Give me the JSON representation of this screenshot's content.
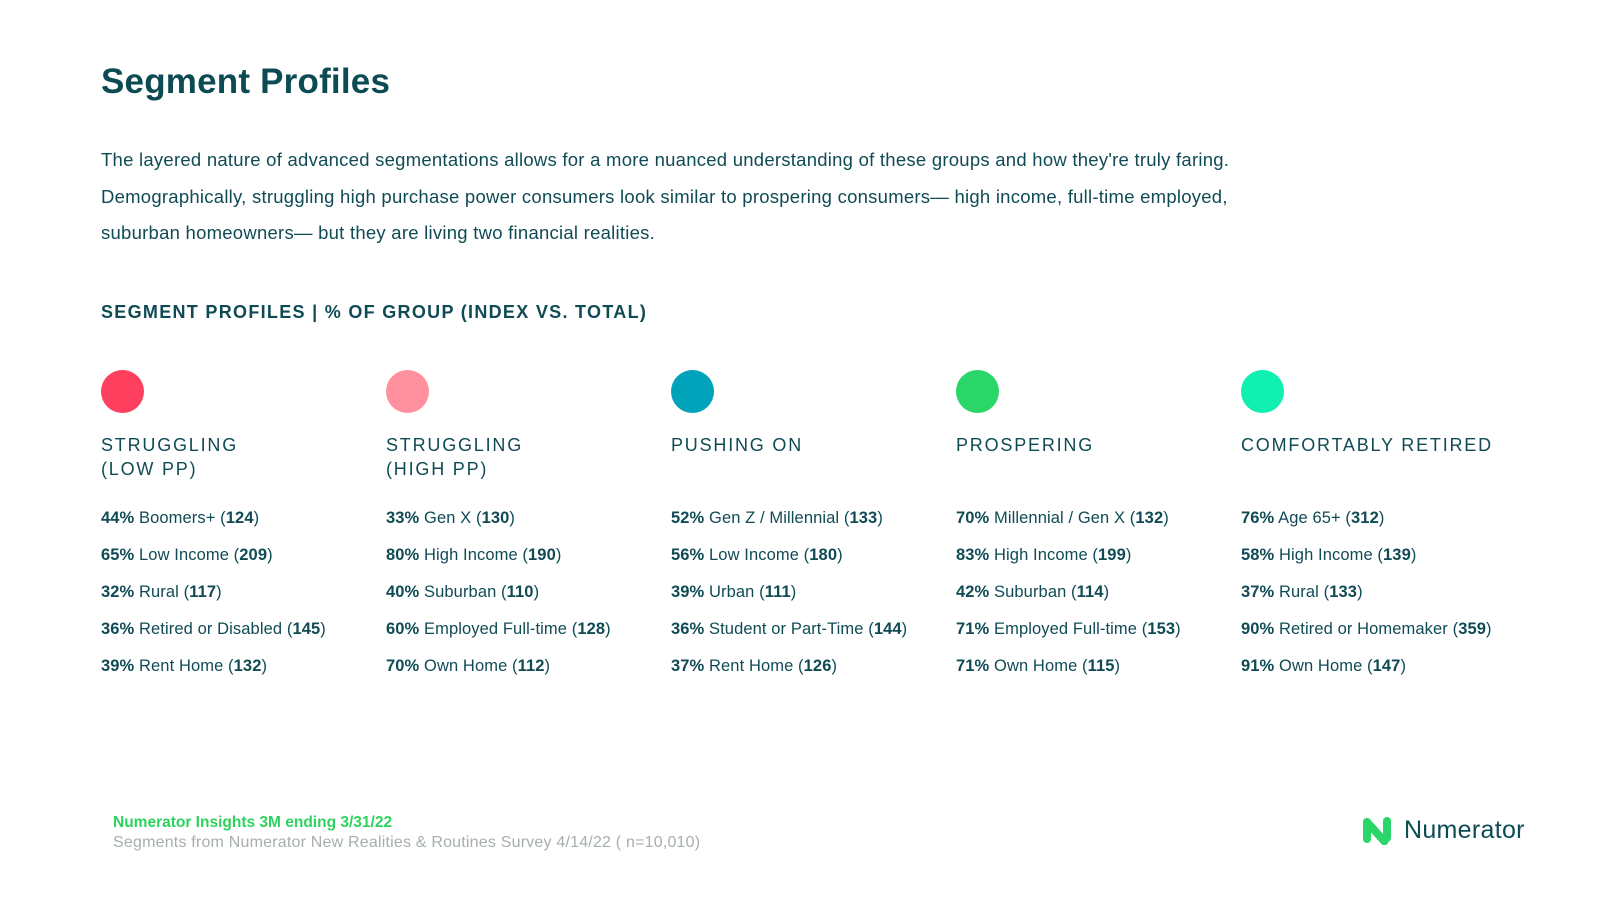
{
  "page": {
    "title": "Segment Profiles",
    "intro": [
      "The layered nature of advanced segmentations allows for a more nuanced understanding of these groups and how they're truly faring.",
      "Demographically, struggling high purchase power consumers look similar to prospering consumers— high income, full-time employed,",
      "suburban homeowners— but they are living two financial realities."
    ],
    "section_heading": "SEGMENT PROFILES | % OF GROUP (INDEX VS. TOTAL)"
  },
  "segments": [
    {
      "name": "STRUGGLING\n(LOW PP)",
      "color": "#ff3f5e",
      "stats": [
        {
          "pct": "44%",
          "label": "Boomers+",
          "index": "124"
        },
        {
          "pct": "65%",
          "label": "Low Income",
          "index": "209"
        },
        {
          "pct": "32%",
          "label": "Rural",
          "index": "117"
        },
        {
          "pct": "36%",
          "label": "Retired or Disabled",
          "index": "145"
        },
        {
          "pct": "39%",
          "label": "Rent Home",
          "index": "132"
        }
      ]
    },
    {
      "name": "STRUGGLING\n(HIGH PP)",
      "color": "#ff909e",
      "stats": [
        {
          "pct": "33%",
          "label": "Gen X",
          "index": "130"
        },
        {
          "pct": "80%",
          "label": "High Income",
          "index": "190"
        },
        {
          "pct": "40%",
          "label": "Suburban",
          "index": "110"
        },
        {
          "pct": "60%",
          "label": "Employed Full-time",
          "index": "128"
        },
        {
          "pct": "70%",
          "label": "Own Home",
          "index": "112"
        }
      ]
    },
    {
      "name": "PUSHING ON",
      "color": "#00a3ba",
      "stats": [
        {
          "pct": "52%",
          "label": "Gen Z / Millennial",
          "index": "133"
        },
        {
          "pct": "56%",
          "label": "Low Income",
          "index": "180"
        },
        {
          "pct": "39%",
          "label": "Urban",
          "index": "111"
        },
        {
          "pct": "36%",
          "label": "Student or Part-Time",
          "index": "144"
        },
        {
          "pct": "37%",
          "label": "Rent Home",
          "index": "126"
        }
      ]
    },
    {
      "name": "PROSPERING",
      "color": "#2ad668",
      "stats": [
        {
          "pct": "70%",
          "label": "Millennial / Gen X",
          "index": "132"
        },
        {
          "pct": "83%",
          "label": "High Income",
          "index": "199"
        },
        {
          "pct": "42%",
          "label": "Suburban",
          "index": "114"
        },
        {
          "pct": "71%",
          "label": "Employed Full-time",
          "index": "153"
        },
        {
          "pct": "71%",
          "label": "Own Home",
          "index": "115"
        }
      ]
    },
    {
      "name": "COMFORTABLY RETIRED",
      "color": "#0ff0b0",
      "stats": [
        {
          "pct": "76%",
          "label": "Age 65+",
          "index": "312"
        },
        {
          "pct": "58%",
          "label": "High Income",
          "index": "139"
        },
        {
          "pct": "37%",
          "label": "Rural",
          "index": "133"
        },
        {
          "pct": "90%",
          "label": "Retired or Homemaker",
          "index": "359"
        },
        {
          "pct": "91%",
          "label": "Own Home",
          "index": "147"
        }
      ]
    }
  ],
  "footer": {
    "source_main": "Numerator Insights 3M ending 3/31/22",
    "source_sub": "Segments from Numerator New Realities & Routines Survey 4/14/22 ( n=10,010)",
    "logo_text": "Numerator",
    "logo_icon": "numerator-n-icon",
    "logo_color": "#2ad668"
  }
}
